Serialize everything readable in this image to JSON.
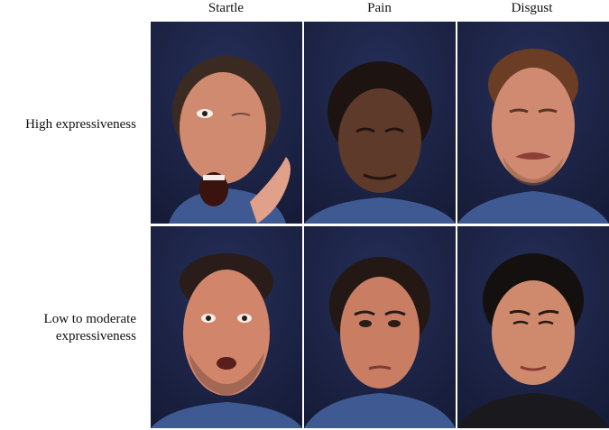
{
  "columns": [
    "Startle",
    "Pain",
    "Disgust"
  ],
  "rows": [
    {
      "label": "High expressiveness"
    },
    {
      "label": "Low to moderate\nexpressiveness"
    }
  ],
  "colors": {
    "background": "#1c2447",
    "skin": "#c9826a",
    "hair": "#3b2a22",
    "shirt": "#3f5a93"
  }
}
